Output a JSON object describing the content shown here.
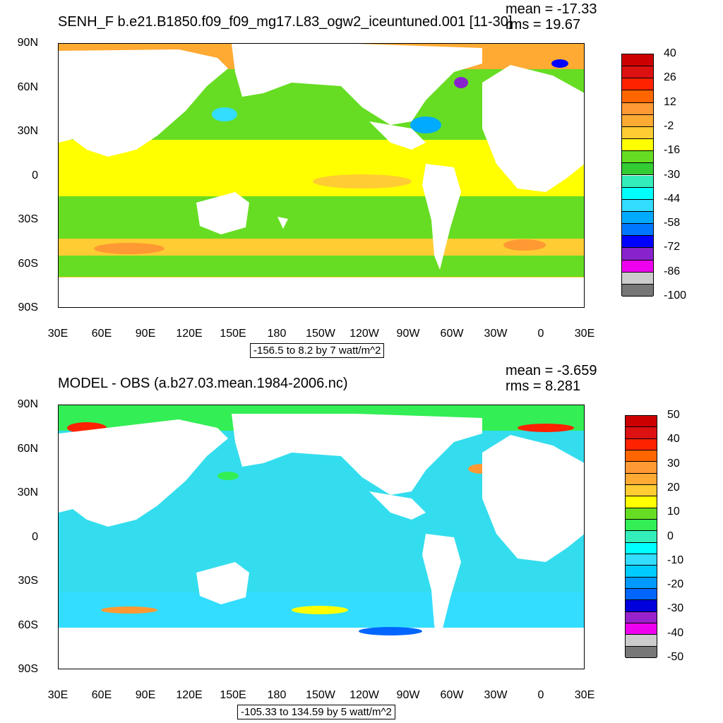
{
  "panels": [
    {
      "id": "top",
      "title": "SENH_F b.e21.B1850.f09_f09_mg17.L83_ogw2_iceuntuned.001 [11-30]",
      "mean_label": "mean = -17.33",
      "rms_label": "rms = 19.67",
      "info_label": "-156.5 to 8.2 by 7 watt/m^2",
      "lat_labels": [
        "90N",
        "60N",
        "30N",
        "0",
        "30S",
        "60S",
        "90S"
      ],
      "lon_labels": [
        "30E",
        "60E",
        "90E",
        "120E",
        "150E",
        "180",
        "150W",
        "120W",
        "90W",
        "60W",
        "30W",
        "0",
        "30E"
      ],
      "ocean_color": "#66dd22",
      "colorbar": {
        "labels": [
          "40",
          "26",
          "12",
          "-2",
          "-16",
          "-30",
          "-44",
          "-58",
          "-72",
          "-86",
          "-100"
        ],
        "colors": [
          "#cc0000",
          "#dd1111",
          "#ff2200",
          "#ff6600",
          "#ff9933",
          "#ffaa33",
          "#ffcc33",
          "#ffff00",
          "#66dd22",
          "#33cc33",
          "#33eebb",
          "#00ffff",
          "#33ddff",
          "#00aaff",
          "#0077ff",
          "#0000ff",
          "#8822cc",
          "#ee00ee",
          "#cccccc",
          "#777777"
        ]
      }
    },
    {
      "id": "bottom",
      "title": "MODEL - OBS (a.b27.03.mean.1984-2006.nc)",
      "mean_label": "mean = -3.659",
      "rms_label": "rms = 8.281",
      "info_label": "-105.33 to 134.59 by 5 watt/m^2",
      "lat_labels": [
        "90N",
        "60N",
        "30N",
        "0",
        "30S",
        "60S",
        "90S"
      ],
      "lon_labels": [
        "30E",
        "60E",
        "90E",
        "120E",
        "150E",
        "180",
        "150W",
        "120W",
        "90W",
        "60W",
        "30W",
        "0",
        "30E"
      ],
      "ocean_color": "#33ddee",
      "colorbar": {
        "labels": [
          "50",
          "40",
          "30",
          "20",
          "10",
          "0",
          "-10",
          "-20",
          "-30",
          "-40",
          "-50"
        ],
        "colors": [
          "#cc0000",
          "#dd1111",
          "#ff2200",
          "#ff6600",
          "#ff9933",
          "#ffaa33",
          "#ffcc33",
          "#ffff00",
          "#66dd22",
          "#33ee55",
          "#33eebb",
          "#00ffff",
          "#33ddff",
          "#00ccff",
          "#0099ff",
          "#0066ff",
          "#0000dd",
          "#9922cc",
          "#ee00ee",
          "#cccccc",
          "#777777"
        ]
      }
    }
  ]
}
